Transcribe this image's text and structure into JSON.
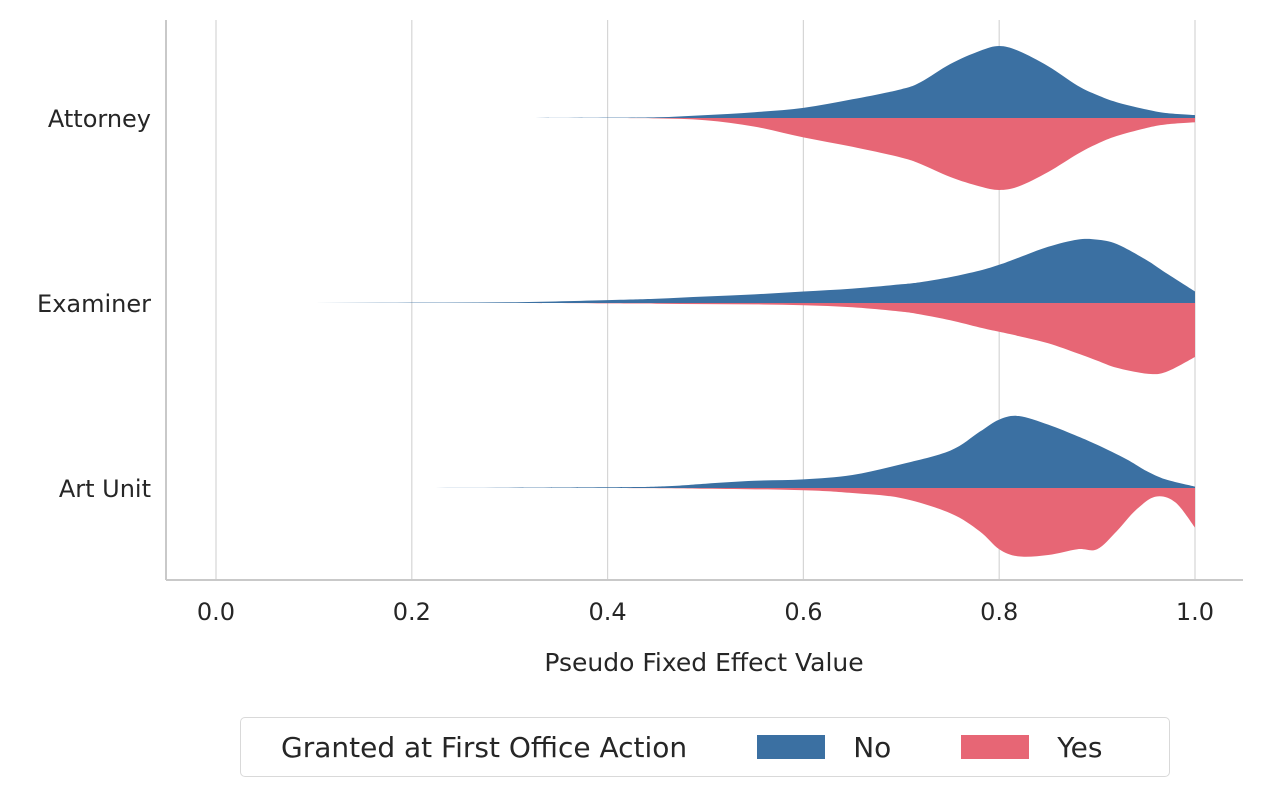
{
  "chart_data": {
    "type": "violin",
    "orientation": "horizontal",
    "split": true,
    "categories": [
      "Attorney",
      "Examiner",
      "Art Unit"
    ],
    "xlabel": "Pseudo Fixed Effect Value",
    "ylabel": "",
    "xlim": [
      -0.05,
      1.05
    ],
    "xticks": [
      "0.0",
      "0.2",
      "0.4",
      "0.6",
      "0.8",
      "1.0"
    ],
    "xtick_values": [
      0.0,
      0.2,
      0.4,
      0.6,
      0.8,
      1.0
    ],
    "grid": "vertical",
    "legend": {
      "title": "Granted at First Office Action",
      "placement": "bottom-center",
      "entries": [
        "No",
        "Yes"
      ]
    },
    "colors": {
      "No": "#3b70a2",
      "Yes": "#e76675"
    },
    "density_x": [
      0.0,
      0.1,
      0.2,
      0.3,
      0.4,
      0.45,
      0.5,
      0.55,
      0.6,
      0.65,
      0.7,
      0.72,
      0.75,
      0.78,
      0.8,
      0.82,
      0.85,
      0.88,
      0.9,
      0.92,
      0.95,
      0.97,
      1.0
    ],
    "series": [
      {
        "name": "No",
        "side": "upper",
        "densities": [
          [
            0.0,
            0.0,
            0.0,
            0.0,
            0.005,
            0.01,
            0.04,
            0.08,
            0.14,
            0.26,
            0.4,
            0.5,
            0.75,
            0.93,
            1.0,
            0.93,
            0.72,
            0.45,
            0.32,
            0.22,
            0.12,
            0.07,
            0.04
          ],
          [
            0.0,
            0.0,
            0.005,
            0.01,
            0.04,
            0.06,
            0.09,
            0.12,
            0.16,
            0.2,
            0.26,
            0.29,
            0.36,
            0.45,
            0.53,
            0.63,
            0.78,
            0.88,
            0.88,
            0.82,
            0.6,
            0.42,
            0.16
          ]
        ]
      },
      {
        "name": "Yes",
        "side": "lower",
        "densities": [
          [
            0.0,
            0.0,
            0.0,
            0.0,
            0.0,
            0.005,
            0.03,
            0.12,
            0.27,
            0.4,
            0.55,
            0.64,
            0.82,
            0.95,
            1.0,
            0.95,
            0.75,
            0.5,
            0.36,
            0.25,
            0.14,
            0.09,
            0.06
          ],
          [
            0.0,
            0.0,
            0.0,
            0.0,
            0.005,
            0.01,
            0.015,
            0.02,
            0.03,
            0.06,
            0.12,
            0.16,
            0.24,
            0.34,
            0.4,
            0.46,
            0.56,
            0.7,
            0.8,
            0.9,
            0.98,
            0.96,
            0.75
          ]
        ]
      }
    ],
    "art_unit_no": {
      "x": [
        0.0,
        0.2,
        0.4,
        0.46,
        0.5,
        0.55,
        0.6,
        0.65,
        0.7,
        0.75,
        0.78,
        0.8,
        0.82,
        0.85,
        0.88,
        0.9,
        0.93,
        0.95,
        0.97,
        1.0
      ],
      "y": [
        0.0,
        0.0,
        0.01,
        0.025,
        0.06,
        0.1,
        0.12,
        0.18,
        0.33,
        0.52,
        0.78,
        0.95,
        1.0,
        0.88,
        0.72,
        0.6,
        0.4,
        0.24,
        0.12,
        0.02
      ]
    },
    "art_unit_yes": {
      "x": [
        0.0,
        0.2,
        0.4,
        0.5,
        0.6,
        0.65,
        0.7,
        0.75,
        0.78,
        0.8,
        0.82,
        0.85,
        0.88,
        0.9,
        0.92,
        0.94,
        0.96,
        0.98,
        1.0
      ],
      "y": [
        0.0,
        0.0,
        0.0,
        0.01,
        0.03,
        0.07,
        0.14,
        0.35,
        0.6,
        0.85,
        0.95,
        0.93,
        0.85,
        0.85,
        0.6,
        0.3,
        0.12,
        0.2,
        0.55
      ]
    }
  }
}
